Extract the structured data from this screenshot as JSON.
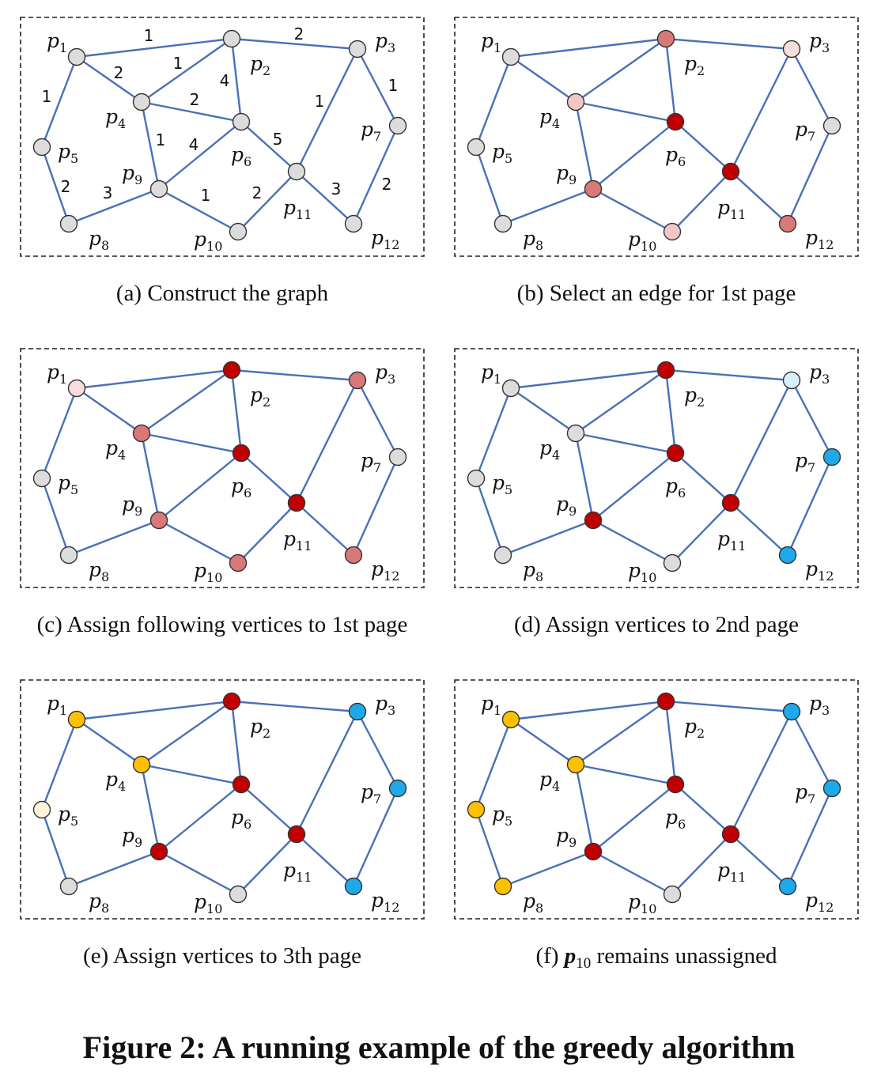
{
  "colors": {
    "gray": "#dcdcdc",
    "red": "#c00000",
    "light_red": "#d97878",
    "pink": "#f3c6c6",
    "light_pink": "#f7dede",
    "blue": "#1da9ea",
    "light_blue": "#d7f1fc",
    "orange": "#ffc000",
    "cream": "#fff6d9",
    "edge": "#4a70b8"
  },
  "vertices": [
    {
      "id": "p1",
      "letter": "p",
      "sub": "1"
    },
    {
      "id": "p2",
      "letter": "p",
      "sub": "2"
    },
    {
      "id": "p3",
      "letter": "p",
      "sub": "3"
    },
    {
      "id": "p4",
      "letter": "p",
      "sub": "4"
    },
    {
      "id": "p5",
      "letter": "p",
      "sub": "5"
    },
    {
      "id": "p6",
      "letter": "p",
      "sub": "6"
    },
    {
      "id": "p7",
      "letter": "p",
      "sub": "7"
    },
    {
      "id": "p8",
      "letter": "p",
      "sub": "8"
    },
    {
      "id": "p9",
      "letter": "p",
      "sub": "9"
    },
    {
      "id": "p10",
      "letter": "p",
      "sub": "10"
    },
    {
      "id": "p11",
      "letter": "p",
      "sub": "11"
    },
    {
      "id": "p12",
      "letter": "p",
      "sub": "12"
    }
  ],
  "edges": [
    {
      "from": "p1",
      "to": "p2",
      "weight": "1"
    },
    {
      "from": "p2",
      "to": "p3",
      "weight": "2"
    },
    {
      "from": "p1",
      "to": "p4",
      "weight": "2"
    },
    {
      "from": "p1",
      "to": "p5",
      "weight": "1"
    },
    {
      "from": "p4",
      "to": "p2",
      "weight": "1"
    },
    {
      "from": "p2",
      "to": "p6",
      "weight": "4"
    },
    {
      "from": "p4",
      "to": "p6",
      "weight": "2"
    },
    {
      "from": "p4",
      "to": "p9",
      "weight": "1"
    },
    {
      "from": "p9",
      "to": "p6",
      "weight": "4"
    },
    {
      "from": "p6",
      "to": "p11",
      "weight": "5"
    },
    {
      "from": "p11",
      "to": "p3",
      "weight": "1"
    },
    {
      "from": "p3",
      "to": "p7",
      "weight": "1"
    },
    {
      "from": "p7",
      "to": "p12",
      "weight": "2"
    },
    {
      "from": "p5",
      "to": "p8",
      "weight": "2"
    },
    {
      "from": "p8",
      "to": "p9",
      "weight": "3"
    },
    {
      "from": "p9",
      "to": "p10",
      "weight": "1"
    },
    {
      "from": "p10",
      "to": "p11",
      "weight": "2"
    },
    {
      "from": "p11",
      "to": "p12",
      "weight": "3"
    }
  ],
  "panels": [
    {
      "caption": "(a)  Construct the graph",
      "show_weights": true,
      "colors": {
        "p1": "gray",
        "p2": "gray",
        "p3": "gray",
        "p4": "gray",
        "p5": "gray",
        "p6": "gray",
        "p7": "gray",
        "p8": "gray",
        "p9": "gray",
        "p10": "gray",
        "p11": "gray",
        "p12": "gray"
      }
    },
    {
      "caption": "(b)  Select an edge for 1st page",
      "show_weights": false,
      "colors": {
        "p1": "gray",
        "p2": "light_red",
        "p3": "light_pink",
        "p4": "pink",
        "p5": "gray",
        "p6": "red",
        "p7": "gray",
        "p8": "gray",
        "p9": "light_red",
        "p10": "pink",
        "p11": "red",
        "p12": "light_red"
      }
    },
    {
      "caption": "(c)  Assign following vertices to 1st page",
      "show_weights": false,
      "colors": {
        "p1": "light_pink",
        "p2": "red",
        "p3": "light_red",
        "p4": "light_red",
        "p5": "gray",
        "p6": "red",
        "p7": "gray",
        "p8": "gray",
        "p9": "light_red",
        "p10": "light_red",
        "p11": "red",
        "p12": "light_red"
      }
    },
    {
      "caption": "(d)  Assign vertices to 2nd page",
      "show_weights": false,
      "colors": {
        "p1": "gray",
        "p2": "red",
        "p3": "light_blue",
        "p4": "gray",
        "p5": "gray",
        "p6": "red",
        "p7": "blue",
        "p8": "gray",
        "p9": "red",
        "p10": "gray",
        "p11": "red",
        "p12": "blue"
      }
    },
    {
      "caption": "(e)  Assign vertices to 3th page",
      "show_weights": false,
      "colors": {
        "p1": "orange",
        "p2": "red",
        "p3": "blue",
        "p4": "orange",
        "p5": "cream",
        "p6": "red",
        "p7": "blue",
        "p8": "gray",
        "p9": "red",
        "p10": "gray",
        "p11": "red",
        "p12": "blue"
      }
    },
    {
      "caption_prefix": "(f)  ",
      "caption_var": "p",
      "caption_var_sub": "10",
      "caption_suffix": " remains unassigned",
      "show_weights": false,
      "colors": {
        "p1": "orange",
        "p2": "red",
        "p3": "blue",
        "p4": "orange",
        "p5": "orange",
        "p6": "red",
        "p7": "blue",
        "p8": "orange",
        "p9": "red",
        "p10": "gray",
        "p11": "red",
        "p12": "blue"
      }
    }
  ],
  "figure_title": "Figure 2: A running example of the greedy algorithm"
}
